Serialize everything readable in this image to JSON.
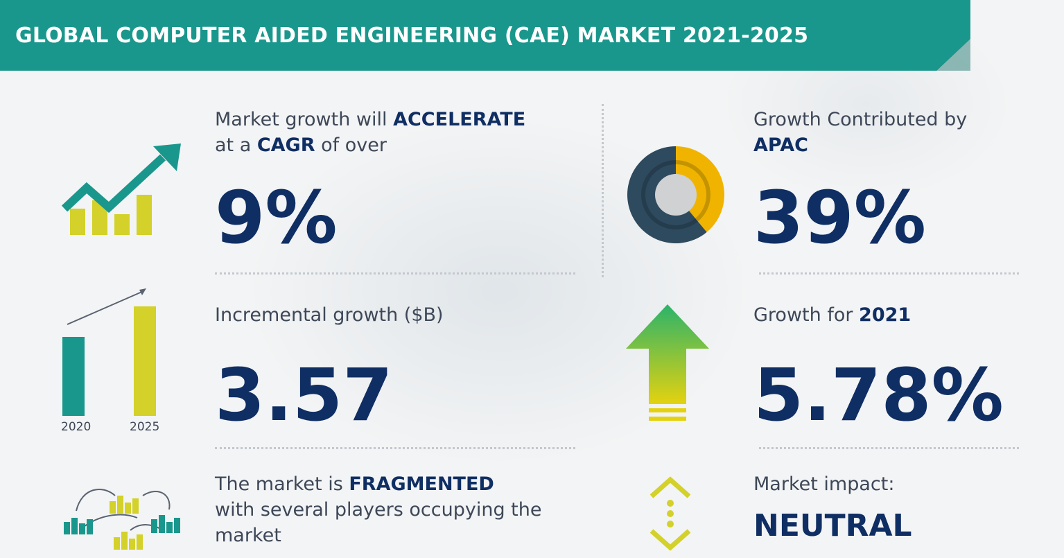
{
  "banner": {
    "title": "GLOBAL COMPUTER AIDED ENGINEERING (CAE) MARKET 2021-2025"
  },
  "cagr": {
    "line1_pre": "Market growth will ",
    "line1_bold": "ACCELERATE",
    "line2_pre": "at a ",
    "line2_bold": "CAGR",
    "line2_post": " of over",
    "value": "9%",
    "icon": "trend-up-bars-icon"
  },
  "incremental": {
    "label": "Incremental growth ($B)",
    "value": "3.57",
    "year_start": "2020",
    "year_end": "2025",
    "icon": "bar-comparison-icon"
  },
  "fragmented": {
    "line1_pre": "The market is ",
    "line1_bold": "FRAGMENTED",
    "line2": "with several players occupying the",
    "line3": "market",
    "icon": "network-bars-icon"
  },
  "apac": {
    "line1": "Growth Contributed by",
    "line2_bold": "APAC",
    "value": "39%",
    "share": 0.39,
    "icon": "donut-chart-icon"
  },
  "growth2021": {
    "label_pre": "Growth for ",
    "label_bold": "2021",
    "value": "5.78%",
    "icon": "up-arrow-icon"
  },
  "impact": {
    "label": "Market impact:",
    "value": "NEUTRAL",
    "icon": "up-down-chevrons-icon"
  },
  "colors": {
    "teal": "#1a978c",
    "navy": "#0f2e63",
    "yellow": "#d3d12a",
    "gold": "#f0b400",
    "slate": "#2e4a5e",
    "green": "#3ab56a"
  }
}
